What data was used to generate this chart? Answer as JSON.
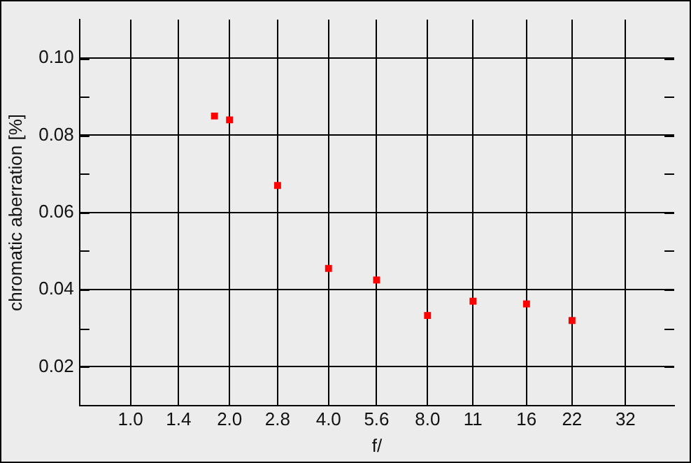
{
  "chart_data": {
    "type": "scatter",
    "xlabel": "f/",
    "ylabel": "chromatic aberration [%]",
    "x": [
      1.8,
      2.0,
      2.8,
      4.0,
      5.6,
      8.0,
      11,
      16,
      22
    ],
    "series": [
      {
        "color": "#ff0000",
        "values": [
          0.085,
          0.084,
          0.067,
          0.0455,
          0.0425,
          0.0333,
          0.037,
          0.0363,
          0.032
        ]
      }
    ],
    "log": "x",
    "xlim": [
      0.71,
      45
    ],
    "xticks": [
      {
        "value": 1,
        "label": "1.0"
      },
      1.4,
      {
        "value": 2,
        "label": "2.0"
      },
      2.8,
      {
        "value": 4,
        "label": "4.0"
      },
      5.6,
      {
        "value": 8,
        "label": "8.0"
      },
      11,
      16,
      22,
      32
    ],
    "ylim": [
      0.01,
      0.11
    ],
    "yticks": [
      {
        "value": 0.02,
        "label": "0.02"
      },
      {
        "value": 0.03,
        "label": null
      },
      {
        "value": 0.04,
        "label": "0.04"
      },
      {
        "value": 0.05,
        "label": null
      },
      {
        "value": 0.06,
        "label": "0.06"
      },
      {
        "value": 0.07,
        "label": null
      },
      {
        "value": 0.08,
        "label": "0.08"
      },
      {
        "value": 0.09,
        "label": null
      },
      {
        "value": 0.1,
        "label": "0.10"
      }
    ],
    "grid": true,
    "marker": "square",
    "legend": false
  }
}
